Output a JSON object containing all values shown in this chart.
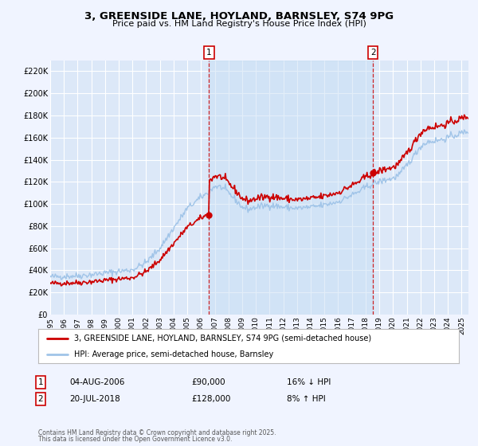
{
  "title": "3, GREENSIDE LANE, HOYLAND, BARNSLEY, S74 9PG",
  "subtitle": "Price paid vs. HM Land Registry's House Price Index (HPI)",
  "legend_line1": "3, GREENSIDE LANE, HOYLAND, BARNSLEY, S74 9PG (semi-detached house)",
  "legend_line2": "HPI: Average price, semi-detached house, Barnsley",
  "footnote1": "Contains HM Land Registry data © Crown copyright and database right 2025.",
  "footnote2": "This data is licensed under the Open Government Licence v3.0.",
  "property_color": "#cc0000",
  "hpi_color": "#a0c4e8",
  "bg_color": "#f0f4ff",
  "plot_bg_color": "#dce8f8",
  "grid_color": "#ffffff",
  "ylim": [
    0,
    230000
  ],
  "yticks": [
    0,
    20000,
    40000,
    60000,
    80000,
    100000,
    120000,
    140000,
    160000,
    180000,
    200000,
    220000
  ],
  "xmin": 1995,
  "xmax": 2025.5,
  "sale1_date": 2006.58,
  "sale1_price": 90000,
  "sale2_date": 2018.54,
  "sale2_price": 128000,
  "ann1_date": "04-AUG-2006",
  "ann1_price": "£90,000",
  "ann1_hpi": "16% ↓ HPI",
  "ann2_date": "20-JUL-2018",
  "ann2_price": "£128,000",
  "ann2_hpi": "8% ↑ HPI"
}
